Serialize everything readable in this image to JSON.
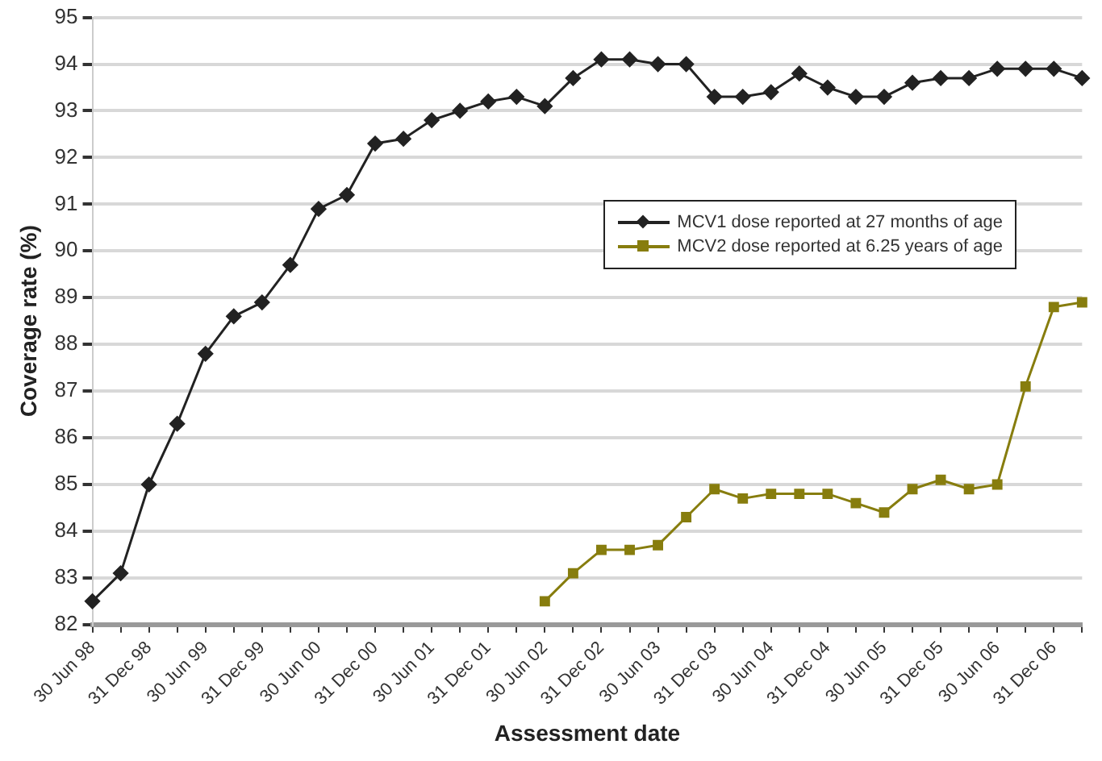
{
  "chart_data": {
    "type": "line",
    "xlabel": "Assessment date",
    "ylabel": "Coverage rate (%)",
    "categories": [
      "30 Jun 98",
      null,
      "31 Dec 98",
      null,
      "30 Jun 99",
      null,
      "31 Dec 99",
      null,
      "30 Jun 00",
      null,
      "31 Dec 00",
      null,
      "30 Jun 01",
      null,
      "31 Dec 01",
      null,
      "30 Jun 02",
      null,
      "31 Dec 02",
      null,
      "30 Jun 03",
      null,
      "31 Dec 03",
      null,
      "30 Jun 04",
      null,
      "31 Dec 04",
      null,
      "30 Jun 05",
      null,
      "31 Dec 05",
      null,
      "30 Jun 06",
      null,
      "31 Dec 06",
      null
    ],
    "series": [
      {
        "name": "MCV1 dose reported at 27 months of age",
        "color": "#222222",
        "marker": "diamond",
        "values": [
          82.5,
          83.1,
          85.0,
          86.3,
          87.8,
          88.6,
          88.9,
          89.7,
          90.9,
          91.2,
          92.3,
          92.4,
          92.8,
          93.0,
          93.2,
          93.3,
          93.1,
          93.7,
          94.1,
          94.1,
          94.0,
          94.0,
          93.3,
          93.3,
          93.4,
          93.8,
          93.5,
          93.3,
          93.3,
          93.6,
          93.7,
          93.7,
          93.9,
          93.9,
          93.9,
          93.7
        ]
      },
      {
        "name": "MCV2 dose reported at 6.25 years of age",
        "color": "#877d0e",
        "marker": "square",
        "values": [
          null,
          null,
          null,
          null,
          null,
          null,
          null,
          null,
          null,
          null,
          null,
          null,
          null,
          null,
          null,
          null,
          82.5,
          83.1,
          83.6,
          83.6,
          83.7,
          84.3,
          84.9,
          84.7,
          84.8,
          84.8,
          84.8,
          84.6,
          84.4,
          84.9,
          85.1,
          84.9,
          85.0,
          87.1,
          88.8,
          88.9
        ]
      }
    ],
    "ylim": [
      82,
      95
    ],
    "yticks": [
      82,
      83,
      84,
      85,
      86,
      87,
      88,
      89,
      90,
      91,
      92,
      93,
      94,
      95
    ],
    "grid": "y",
    "legend": "right",
    "line_style": "solid"
  }
}
